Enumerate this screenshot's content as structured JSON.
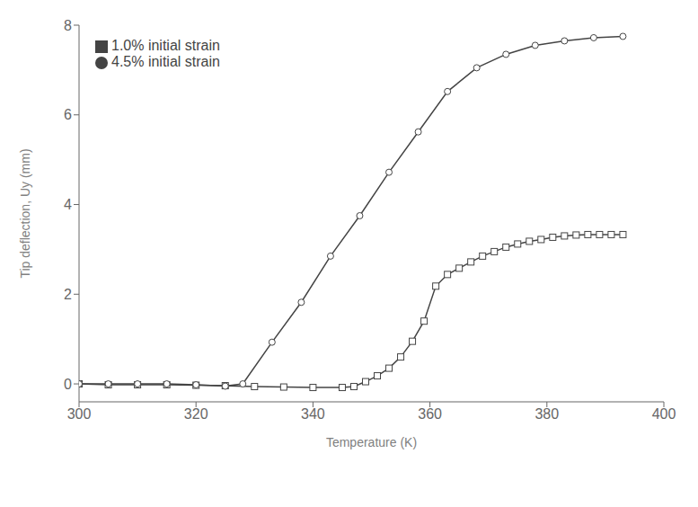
{
  "chart_data": {
    "type": "line",
    "xlabel": "Temperature (K)",
    "ylabel": "Tip deflection, Uy (mm)",
    "xlim": [
      300,
      400
    ],
    "ylim": [
      -0.4,
      8
    ],
    "xticks": [
      300,
      320,
      340,
      360,
      380,
      400
    ],
    "yticks": [
      0,
      2,
      4,
      6,
      8
    ],
    "grid": false,
    "legend": "upper left",
    "series": [
      {
        "name": "1.0% initial strain",
        "color": "#444444",
        "marker": "square",
        "x": [
          300,
          305,
          310,
          315,
          320,
          325,
          330,
          335,
          340,
          345,
          347,
          349,
          351,
          353,
          355,
          357,
          359,
          361,
          363,
          365,
          367,
          369,
          371,
          373,
          375,
          377,
          379,
          381,
          383,
          385,
          387,
          389,
          391,
          393
        ],
        "values": [
          0.0,
          -0.02,
          -0.02,
          -0.02,
          -0.03,
          -0.04,
          -0.06,
          -0.07,
          -0.08,
          -0.08,
          -0.06,
          0.05,
          0.18,
          0.35,
          0.6,
          0.95,
          1.4,
          2.18,
          2.44,
          2.58,
          2.72,
          2.85,
          2.95,
          3.05,
          3.12,
          3.18,
          3.22,
          3.27,
          3.3,
          3.32,
          3.33,
          3.33,
          3.33,
          3.33
        ]
      },
      {
        "name": "4.5% initial strain",
        "color": "#444444",
        "marker": "circle",
        "x": [
          300,
          305,
          310,
          315,
          320,
          325,
          328,
          333,
          338,
          343,
          348,
          353,
          358,
          363,
          368,
          373,
          378,
          383,
          388,
          393
        ],
        "values": [
          0.0,
          0.0,
          0.0,
          0.0,
          -0.02,
          -0.05,
          0.0,
          0.93,
          1.82,
          2.85,
          3.75,
          4.72,
          5.62,
          6.52,
          7.05,
          7.35,
          7.55,
          7.65,
          7.72,
          7.75
        ]
      }
    ]
  }
}
